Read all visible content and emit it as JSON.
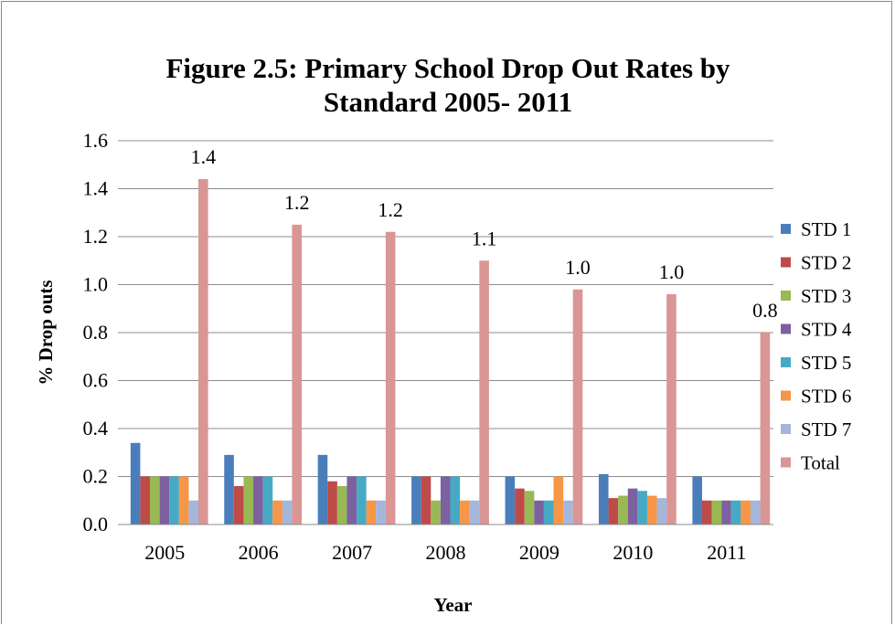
{
  "chart_data": {
    "type": "bar",
    "title": "Figure 2.5: Primary School Drop Out Rates by Standard 2005- 2011",
    "title_lines": [
      "Figure 2.5: Primary School Drop Out Rates by",
      "Standard 2005- 2011"
    ],
    "xlabel": "Year",
    "ylabel": "% Drop outs",
    "categories": [
      "2005",
      "2006",
      "2007",
      "2008",
      "2009",
      "2010",
      "2011"
    ],
    "ylim": [
      0,
      1.6
    ],
    "yticks": [
      "0.0",
      "0.2",
      "0.4",
      "0.6",
      "0.8",
      "1.0",
      "1.2",
      "1.4",
      "1.6"
    ],
    "grid": true,
    "legend_position": "right",
    "series": [
      {
        "name": "STD 1",
        "color": "#4a7ebb",
        "values": [
          0.34,
          0.29,
          0.29,
          0.2,
          0.2,
          0.21,
          0.2
        ]
      },
      {
        "name": "STD 2",
        "color": "#be4b48",
        "values": [
          0.2,
          0.16,
          0.18,
          0.2,
          0.15,
          0.11,
          0.1
        ]
      },
      {
        "name": "STD 3",
        "color": "#98b954",
        "values": [
          0.2,
          0.2,
          0.16,
          0.1,
          0.14,
          0.12,
          0.1
        ]
      },
      {
        "name": "STD 4",
        "color": "#7d60a0",
        "values": [
          0.2,
          0.2,
          0.2,
          0.2,
          0.1,
          0.15,
          0.1
        ]
      },
      {
        "name": "STD 5",
        "color": "#46aac5",
        "values": [
          0.2,
          0.2,
          0.2,
          0.2,
          0.1,
          0.14,
          0.1
        ]
      },
      {
        "name": "STD 6",
        "color": "#f79646",
        "values": [
          0.2,
          0.1,
          0.1,
          0.1,
          0.2,
          0.12,
          0.1
        ]
      },
      {
        "name": "STD 7",
        "color": "#a5b6db",
        "values": [
          0.1,
          0.1,
          0.1,
          0.1,
          0.1,
          0.11,
          0.1
        ]
      },
      {
        "name": "Total",
        "color": "#d99694",
        "values": [
          1.44,
          1.25,
          1.22,
          1.1,
          0.98,
          0.96,
          0.8
        ]
      }
    ],
    "total_labels": [
      "1.4",
      "1.2",
      "1.2",
      "1.1",
      "1.0",
      "1.0",
      "0.8"
    ]
  }
}
